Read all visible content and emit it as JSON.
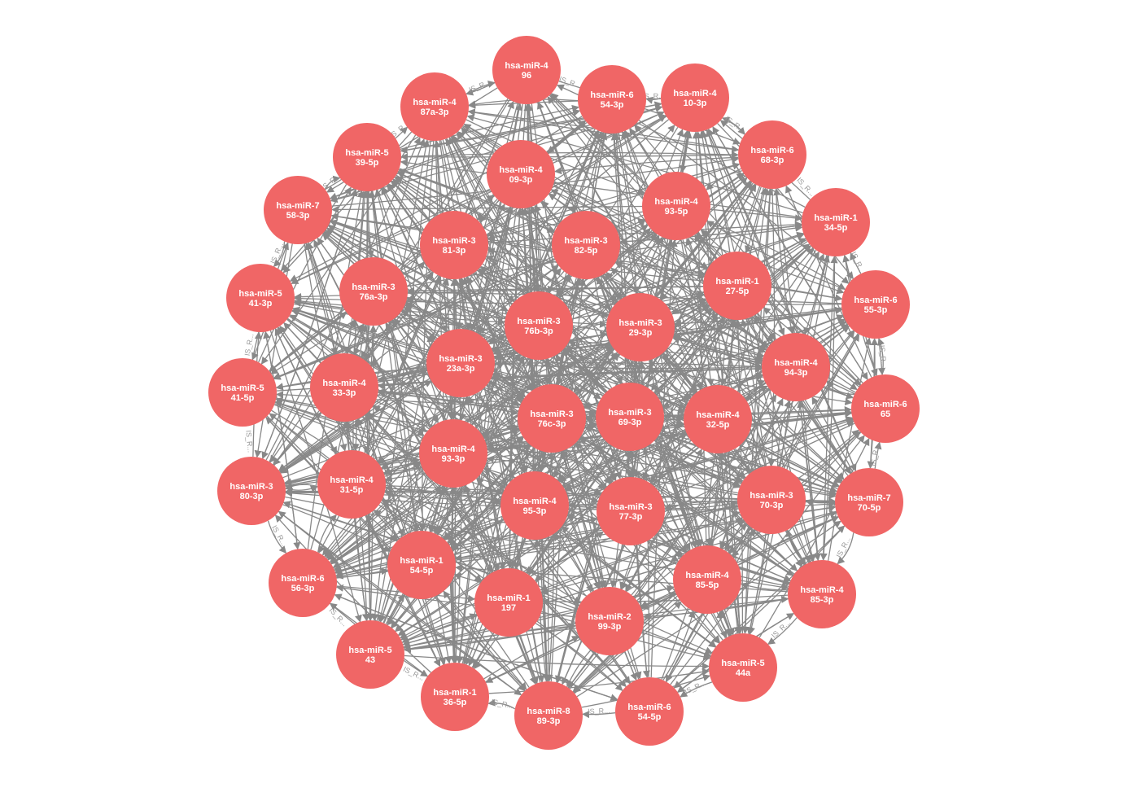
{
  "colors": {
    "node_fill": "#f06666",
    "edge": "#888888",
    "node_text": "#ffffff",
    "background": "#ffffff"
  },
  "edge_label": "IS_R...",
  "nodes": [
    {
      "id": "n496",
      "line1": "hsa-miR-4",
      "line2": "96"
    },
    {
      "id": "n6543",
      "line1": "hsa-miR-6",
      "line2": "54-3p"
    },
    {
      "id": "n4103",
      "line1": "hsa-miR-4",
      "line2": "10-3p"
    },
    {
      "id": "n6683",
      "line1": "hsa-miR-6",
      "line2": "68-3p"
    },
    {
      "id": "n1345",
      "line1": "hsa-miR-1",
      "line2": "34-5p"
    },
    {
      "id": "n6553",
      "line1": "hsa-miR-6",
      "line2": "55-3p"
    },
    {
      "id": "n665",
      "line1": "hsa-miR-6",
      "line2": "65"
    },
    {
      "id": "n7705",
      "line1": "hsa-miR-7",
      "line2": "70-5p"
    },
    {
      "id": "n4853",
      "line1": "hsa-miR-4",
      "line2": "85-3p"
    },
    {
      "id": "n544a",
      "line1": "hsa-miR-5",
      "line2": "44a"
    },
    {
      "id": "n6545",
      "line1": "hsa-miR-6",
      "line2": "54-5p"
    },
    {
      "id": "n8893",
      "line1": "hsa-miR-8",
      "line2": "89-3p"
    },
    {
      "id": "n1365",
      "line1": "hsa-miR-1",
      "line2": "36-5p"
    },
    {
      "id": "n543",
      "line1": "hsa-miR-5",
      "line2": "43"
    },
    {
      "id": "n6563",
      "line1": "hsa-miR-6",
      "line2": "56-3p"
    },
    {
      "id": "n3803",
      "line1": "hsa-miR-3",
      "line2": "80-3p"
    },
    {
      "id": "n5415",
      "line1": "hsa-miR-5",
      "line2": "41-5p"
    },
    {
      "id": "n5413",
      "line1": "hsa-miR-5",
      "line2": "41-3p"
    },
    {
      "id": "n7583",
      "line1": "hsa-miR-7",
      "line2": "58-3p"
    },
    {
      "id": "n5395",
      "line1": "hsa-miR-5",
      "line2": "39-5p"
    },
    {
      "id": "n487a",
      "line1": "hsa-miR-4",
      "line2": "87a-3p"
    },
    {
      "id": "n4093",
      "line1": "hsa-miR-4",
      "line2": "09-3p"
    },
    {
      "id": "n4935",
      "line1": "hsa-miR-4",
      "line2": "93-5p"
    },
    {
      "id": "n3825",
      "line1": "hsa-miR-3",
      "line2": "82-5p"
    },
    {
      "id": "n3813",
      "line1": "hsa-miR-3",
      "line2": "81-3p"
    },
    {
      "id": "n1275",
      "line1": "hsa-miR-1",
      "line2": "27-5p"
    },
    {
      "id": "n4943",
      "line1": "hsa-miR-4",
      "line2": "94-3p"
    },
    {
      "id": "n4325",
      "line1": "hsa-miR-4",
      "line2": "32-5p"
    },
    {
      "id": "n3703",
      "line1": "hsa-miR-3",
      "line2": "70-3p"
    },
    {
      "id": "n4855",
      "line1": "hsa-miR-4",
      "line2": "85-5p"
    },
    {
      "id": "n2993",
      "line1": "hsa-miR-2",
      "line2": "99-3p"
    },
    {
      "id": "n1197",
      "line1": "hsa-miR-1",
      "line2": "197"
    },
    {
      "id": "n1545",
      "line1": "hsa-miR-1",
      "line2": "54-5p"
    },
    {
      "id": "n4315",
      "line1": "hsa-miR-4",
      "line2": "31-5p"
    },
    {
      "id": "n4333",
      "line1": "hsa-miR-4",
      "line2": "33-3p"
    },
    {
      "id": "n376a",
      "line1": "hsa-miR-3",
      "line2": "76a-3p"
    },
    {
      "id": "n376b",
      "line1": "hsa-miR-3",
      "line2": "76b-3p"
    },
    {
      "id": "n3293",
      "line1": "hsa-miR-3",
      "line2": "29-3p"
    },
    {
      "id": "n323a",
      "line1": "hsa-miR-3",
      "line2": "23a-3p"
    },
    {
      "id": "n376c",
      "line1": "hsa-miR-3",
      "line2": "76c-3p"
    },
    {
      "id": "n3693",
      "line1": "hsa-miR-3",
      "line2": "69-3p"
    },
    {
      "id": "n4933",
      "line1": "hsa-miR-4",
      "line2": "93-3p"
    },
    {
      "id": "n4953",
      "line1": "hsa-miR-4",
      "line2": "95-3p"
    },
    {
      "id": "n3773",
      "line1": "hsa-miR-3",
      "line2": "77-3p"
    }
  ]
}
